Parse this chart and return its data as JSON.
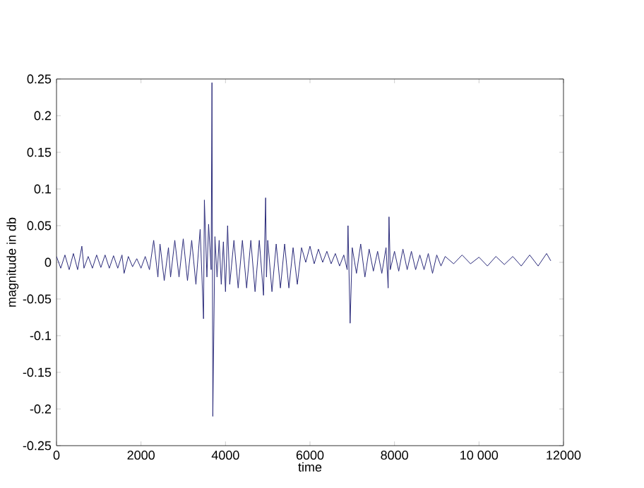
{
  "chart_data": {
    "type": "line",
    "xlabel": "time",
    "ylabel": "magnitude  in db",
    "xlim": [
      0,
      12000
    ],
    "ylim": [
      -0.25,
      0.25
    ],
    "xticks": [
      0,
      2000,
      4000,
      6000,
      8000,
      {
        "value": 10000,
        "label": "10 000"
      },
      12000
    ],
    "yticks": [
      -0.25,
      -0.2,
      -0.15,
      -0.1,
      -0.05,
      0,
      0.05,
      0.1,
      0.15,
      0.2,
      0.25
    ],
    "grid": false,
    "marker": "none",
    "line_style": "solid",
    "series": [
      {
        "color": "#2b2b7a",
        "x": [
          0,
          100,
          200,
          300,
          400,
          500,
          600,
          650,
          750,
          850,
          950,
          1050,
          1150,
          1250,
          1350,
          1450,
          1550,
          1600,
          1700,
          1800,
          1900,
          2000,
          2100,
          2200,
          2300,
          2400,
          2450,
          2550,
          2650,
          2700,
          2800,
          2900,
          3000,
          3100,
          3200,
          3300,
          3400,
          3480,
          3500,
          3560,
          3600,
          3660,
          3680,
          3700,
          3750,
          3800,
          3850,
          3900,
          3950,
          4000,
          4050,
          4100,
          4200,
          4300,
          4400,
          4500,
          4600,
          4700,
          4800,
          4900,
          4950,
          4970,
          5000,
          5100,
          5200,
          5300,
          5400,
          5500,
          5600,
          5700,
          5800,
          5900,
          6000,
          6100,
          6200,
          6300,
          6400,
          6500,
          6600,
          6700,
          6800,
          6880,
          6900,
          6950,
          7000,
          7100,
          7200,
          7300,
          7400,
          7500,
          7600,
          7700,
          7800,
          7850,
          7870,
          7900,
          8000,
          8100,
          8200,
          8300,
          8400,
          8500,
          8600,
          8700,
          8800,
          8900,
          9000,
          9100,
          9200,
          9400,
          9600,
          9800,
          10000,
          10200,
          10400,
          10600,
          10800,
          11000,
          11200,
          11400,
          11600,
          11700
        ],
        "values": [
          0.008,
          -0.008,
          0.01,
          -0.01,
          0.012,
          -0.01,
          0.022,
          -0.008,
          0.008,
          -0.008,
          0.01,
          -0.007,
          0.01,
          -0.008,
          0.009,
          -0.008,
          0.01,
          -0.015,
          0.008,
          -0.006,
          0.005,
          -0.008,
          0.008,
          -0.01,
          0.03,
          -0.02,
          0.025,
          -0.025,
          0.02,
          -0.02,
          0.03,
          -0.02,
          0.032,
          -0.025,
          0.03,
          -0.03,
          0.045,
          -0.077,
          0.085,
          -0.02,
          0.052,
          -0.01,
          0.245,
          -0.21,
          0.035,
          -0.02,
          0.03,
          -0.03,
          0.028,
          -0.04,
          0.05,
          -0.03,
          0.03,
          -0.035,
          0.03,
          -0.035,
          0.03,
          -0.04,
          0.03,
          -0.045,
          0.088,
          -0.02,
          0.03,
          -0.04,
          0.025,
          -0.035,
          0.025,
          -0.035,
          0.02,
          -0.03,
          0.02,
          0.0,
          0.022,
          -0.002,
          0.018,
          0.0,
          0.015,
          -0.002,
          0.012,
          -0.005,
          0.01,
          -0.01,
          0.05,
          -0.083,
          0.02,
          -0.015,
          0.025,
          -0.02,
          0.018,
          -0.012,
          0.015,
          -0.015,
          0.02,
          -0.035,
          0.062,
          -0.01,
          0.015,
          -0.012,
          0.018,
          -0.01,
          0.015,
          -0.01,
          0.01,
          -0.01,
          0.012,
          -0.015,
          0.01,
          -0.005,
          0.008,
          -0.002,
          0.01,
          -0.002,
          0.007,
          -0.005,
          0.008,
          -0.003,
          0.008,
          -0.005,
          0.01,
          -0.005,
          0.012,
          0.002
        ]
      }
    ]
  }
}
